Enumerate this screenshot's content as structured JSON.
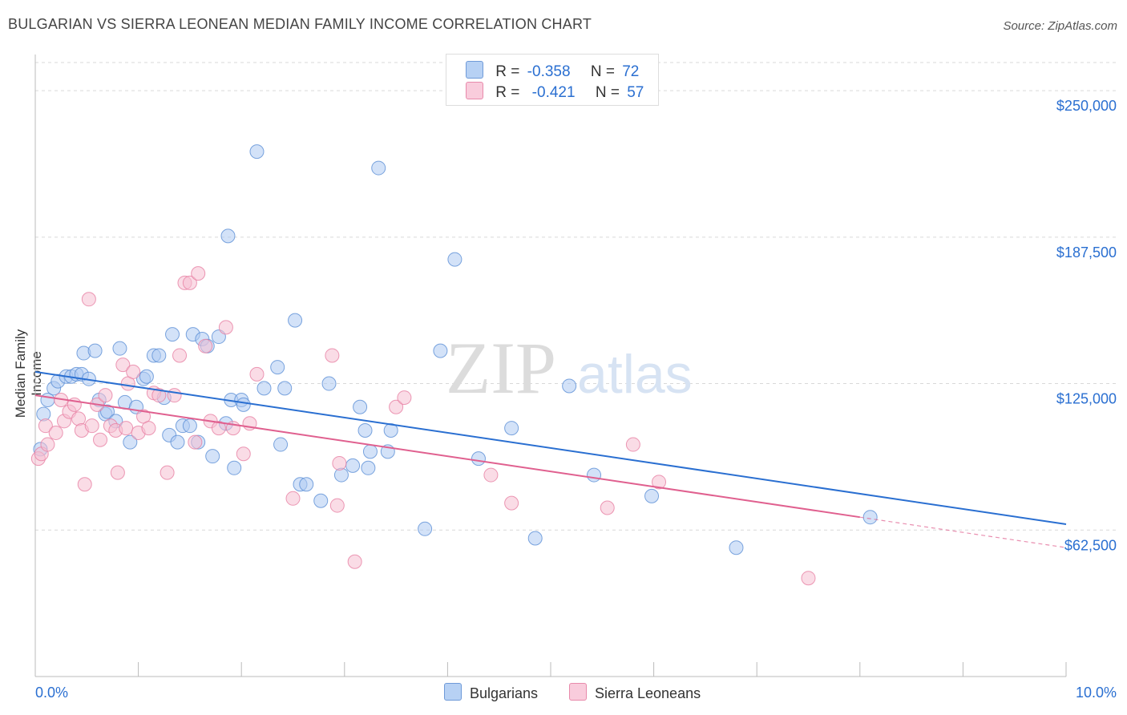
{
  "title": "BULGARIAN VS SIERRA LEONEAN MEDIAN FAMILY INCOME CORRELATION CHART",
  "source": "Source: ZipAtlas.com",
  "colors": {
    "blue_fill": "#aecbf2",
    "blue_stroke": "#5b8fd6",
    "blue_line": "#2a6fd1",
    "pink_fill": "#f6c0d2",
    "pink_stroke": "#e77fa2",
    "pink_line": "#e0608f",
    "axis_text": "#2a6fd1",
    "grid": "#d9d9d9"
  },
  "legend_top": {
    "rows": [
      {
        "r_label": "R =",
        "r_value": "-0.358",
        "n_label": "N =",
        "n_value": "72"
      },
      {
        "r_label": "R =",
        "r_value": "-0.421",
        "n_label": "N =",
        "n_value": "57"
      }
    ]
  },
  "legend_bottom": [
    "Bulgarians",
    "Sierra Leoneans"
  ],
  "chart_data": {
    "type": "scatter",
    "title": "BULGARIAN VS SIERRA LEONEAN MEDIAN FAMILY INCOME CORRELATION CHART",
    "ylabel": "Median Family Income",
    "xlabel": "",
    "xlim": [
      0,
      10
    ],
    "ylim": [
      0,
      262000
    ],
    "x_tick_labels": [
      "0.0%",
      "10.0%"
    ],
    "y_ticks": [
      62500,
      125000,
      187500,
      250000
    ],
    "y_tick_labels": [
      "$62,500",
      "$125,000",
      "$187,500",
      "$250,000"
    ],
    "grid": "horizontal dashed",
    "legend_position": "top-center",
    "series": [
      {
        "name": "Bulgarians",
        "r": -0.358,
        "n": 72,
        "trend": {
          "x": [
            0,
            10
          ],
          "y": [
            130000,
            65000
          ]
        },
        "points": [
          [
            0.05,
            97000
          ],
          [
            0.08,
            112000
          ],
          [
            0.12,
            118000
          ],
          [
            0.18,
            123000
          ],
          [
            0.22,
            126000
          ],
          [
            0.3,
            128000
          ],
          [
            0.35,
            128000
          ],
          [
            0.4,
            129000
          ],
          [
            0.45,
            129000
          ],
          [
            0.47,
            138000
          ],
          [
            0.52,
            127000
          ],
          [
            0.58,
            139000
          ],
          [
            0.62,
            118000
          ],
          [
            0.68,
            112000
          ],
          [
            0.7,
            113000
          ],
          [
            0.78,
            109000
          ],
          [
            0.82,
            140000
          ],
          [
            0.87,
            117000
          ],
          [
            0.92,
            100000
          ],
          [
            0.98,
            115000
          ],
          [
            1.05,
            127000
          ],
          [
            1.08,
            128000
          ],
          [
            1.15,
            137000
          ],
          [
            1.2,
            137000
          ],
          [
            1.25,
            119000
          ],
          [
            1.3,
            103000
          ],
          [
            1.33,
            146000
          ],
          [
            1.38,
            100000
          ],
          [
            1.43,
            107000
          ],
          [
            1.5,
            107000
          ],
          [
            1.53,
            146000
          ],
          [
            1.58,
            100000
          ],
          [
            1.62,
            144000
          ],
          [
            1.67,
            141000
          ],
          [
            1.72,
            94000
          ],
          [
            1.78,
            145000
          ],
          [
            1.85,
            108000
          ],
          [
            1.87,
            188000
          ],
          [
            1.9,
            118000
          ],
          [
            1.93,
            89000
          ],
          [
            2.0,
            118000
          ],
          [
            2.02,
            116000
          ],
          [
            2.15,
            224000
          ],
          [
            2.22,
            123000
          ],
          [
            2.35,
            132000
          ],
          [
            2.38,
            99000
          ],
          [
            2.42,
            123000
          ],
          [
            2.52,
            152000
          ],
          [
            2.57,
            82000
          ],
          [
            2.63,
            82000
          ],
          [
            2.77,
            75000
          ],
          [
            2.85,
            125000
          ],
          [
            2.97,
            86000
          ],
          [
            3.08,
            90000
          ],
          [
            3.15,
            115000
          ],
          [
            3.2,
            105000
          ],
          [
            3.23,
            89000
          ],
          [
            3.25,
            96000
          ],
          [
            3.33,
            217000
          ],
          [
            3.42,
            96000
          ],
          [
            3.45,
            105000
          ],
          [
            3.78,
            63000
          ],
          [
            3.93,
            139000
          ],
          [
            4.07,
            178000
          ],
          [
            4.3,
            93000
          ],
          [
            4.62,
            106000
          ],
          [
            4.85,
            59000
          ],
          [
            5.18,
            124000
          ],
          [
            5.42,
            86000
          ],
          [
            5.98,
            77000
          ],
          [
            6.8,
            55000
          ],
          [
            8.1,
            68000
          ]
        ]
      },
      {
        "name": "Sierra Leoneans",
        "r": -0.421,
        "n": 57,
        "trend": {
          "x": [
            0,
            8
          ],
          "y": [
            120000,
            68000
          ]
        },
        "trend_dashed": {
          "x": [
            8,
            10
          ],
          "y": [
            68000,
            55000
          ]
        },
        "points": [
          [
            0.03,
            93000
          ],
          [
            0.06,
            95000
          ],
          [
            0.1,
            107000
          ],
          [
            0.12,
            99000
          ],
          [
            0.2,
            104000
          ],
          [
            0.25,
            118000
          ],
          [
            0.28,
            109000
          ],
          [
            0.33,
            113000
          ],
          [
            0.38,
            116000
          ],
          [
            0.42,
            110000
          ],
          [
            0.45,
            105000
          ],
          [
            0.48,
            82000
          ],
          [
            0.52,
            161000
          ],
          [
            0.55,
            107000
          ],
          [
            0.6,
            116000
          ],
          [
            0.63,
            101000
          ],
          [
            0.68,
            120000
          ],
          [
            0.73,
            107000
          ],
          [
            0.78,
            105000
          ],
          [
            0.8,
            87000
          ],
          [
            0.85,
            133000
          ],
          [
            0.88,
            106000
          ],
          [
            0.9,
            125000
          ],
          [
            0.95,
            130000
          ],
          [
            1.0,
            104000
          ],
          [
            1.05,
            111000
          ],
          [
            1.1,
            106000
          ],
          [
            1.15,
            121000
          ],
          [
            1.2,
            120000
          ],
          [
            1.28,
            87000
          ],
          [
            1.35,
            120000
          ],
          [
            1.4,
            137000
          ],
          [
            1.45,
            168000
          ],
          [
            1.5,
            168000
          ],
          [
            1.55,
            100000
          ],
          [
            1.58,
            172000
          ],
          [
            1.65,
            141000
          ],
          [
            1.7,
            109000
          ],
          [
            1.78,
            106000
          ],
          [
            1.85,
            149000
          ],
          [
            1.92,
            106000
          ],
          [
            2.02,
            95000
          ],
          [
            2.08,
            108000
          ],
          [
            2.15,
            129000
          ],
          [
            2.5,
            76000
          ],
          [
            2.88,
            137000
          ],
          [
            2.93,
            73000
          ],
          [
            2.95,
            91000
          ],
          [
            3.1,
            49000
          ],
          [
            3.5,
            115000
          ],
          [
            3.58,
            119000
          ],
          [
            4.42,
            86000
          ],
          [
            4.62,
            74000
          ],
          [
            5.55,
            72000
          ],
          [
            5.8,
            99000
          ],
          [
            6.05,
            83000
          ],
          [
            7.5,
            42000
          ]
        ]
      }
    ]
  }
}
